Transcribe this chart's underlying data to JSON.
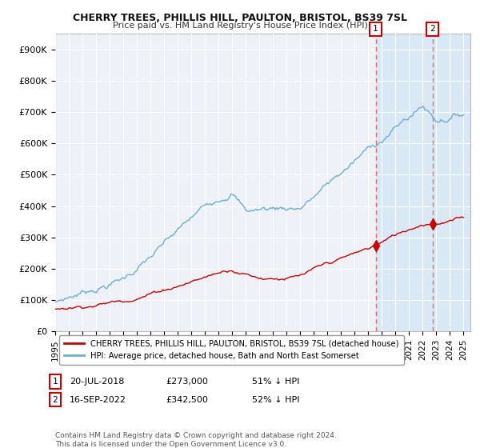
{
  "title": "CHERRY TREES, PHILLIS HILL, PAULTON, BRISTOL, BS39 7SL",
  "subtitle": "Price paid vs. HM Land Registry's House Price Index (HPI)",
  "ylabel_ticks": [
    "£0",
    "£100K",
    "£200K",
    "£300K",
    "£400K",
    "£500K",
    "£600K",
    "£700K",
    "£800K",
    "£900K"
  ],
  "ytick_vals": [
    0,
    100000,
    200000,
    300000,
    400000,
    500000,
    600000,
    700000,
    800000,
    900000
  ],
  "ylim": [
    0,
    950000
  ],
  "xlim_start": 1995.0,
  "xlim_end": 2025.5,
  "hpi_color": "#6baed6",
  "price_color": "#cc0000",
  "legend_label_price": "CHERRY TREES, PHILLIS HILL, PAULTON, BRISTOL, BS39 7SL (detached house)",
  "legend_label_hpi": "HPI: Average price, detached house, Bath and North East Somerset",
  "marker1_date": 2018.54,
  "marker1_price": 273000,
  "marker2_date": 2022.71,
  "marker2_price": 342500,
  "footer": "Contains HM Land Registry data © Crown copyright and database right 2024.\nThis data is licensed under the Open Government Licence v3.0.",
  "background_color": "#ffffff",
  "plot_bg_color": "#eef2f8",
  "shade_color": "#d0e4f5",
  "dashed_color": "#ff6666",
  "grid_color": "#ffffff"
}
